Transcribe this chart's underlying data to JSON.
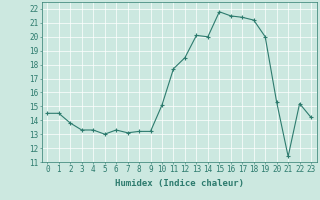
{
  "x": [
    0,
    1,
    2,
    3,
    4,
    5,
    6,
    7,
    8,
    9,
    10,
    11,
    12,
    13,
    14,
    15,
    16,
    17,
    18,
    19,
    20,
    21,
    22,
    23
  ],
  "y": [
    14.5,
    14.5,
    13.8,
    13.3,
    13.3,
    13.0,
    13.3,
    13.1,
    13.2,
    13.2,
    15.1,
    17.7,
    18.5,
    20.1,
    20.0,
    21.8,
    21.5,
    21.4,
    21.2,
    20.0,
    15.3,
    11.4,
    15.2,
    14.2
  ],
  "xlabel": "Humidex (Indice chaleur)",
  "xlim": [
    -0.5,
    23.5
  ],
  "ylim": [
    11,
    22.5
  ],
  "yticks": [
    11,
    12,
    13,
    14,
    15,
    16,
    17,
    18,
    19,
    20,
    21,
    22
  ],
  "xticks": [
    0,
    1,
    2,
    3,
    4,
    5,
    6,
    7,
    8,
    9,
    10,
    11,
    12,
    13,
    14,
    15,
    16,
    17,
    18,
    19,
    20,
    21,
    22,
    23
  ],
  "line_color": "#2d7b6e",
  "bg_color": "#cce8e0",
  "grid_color": "#b8d8d0",
  "tick_label_fontsize": 5.5,
  "xlabel_fontsize": 6.5
}
